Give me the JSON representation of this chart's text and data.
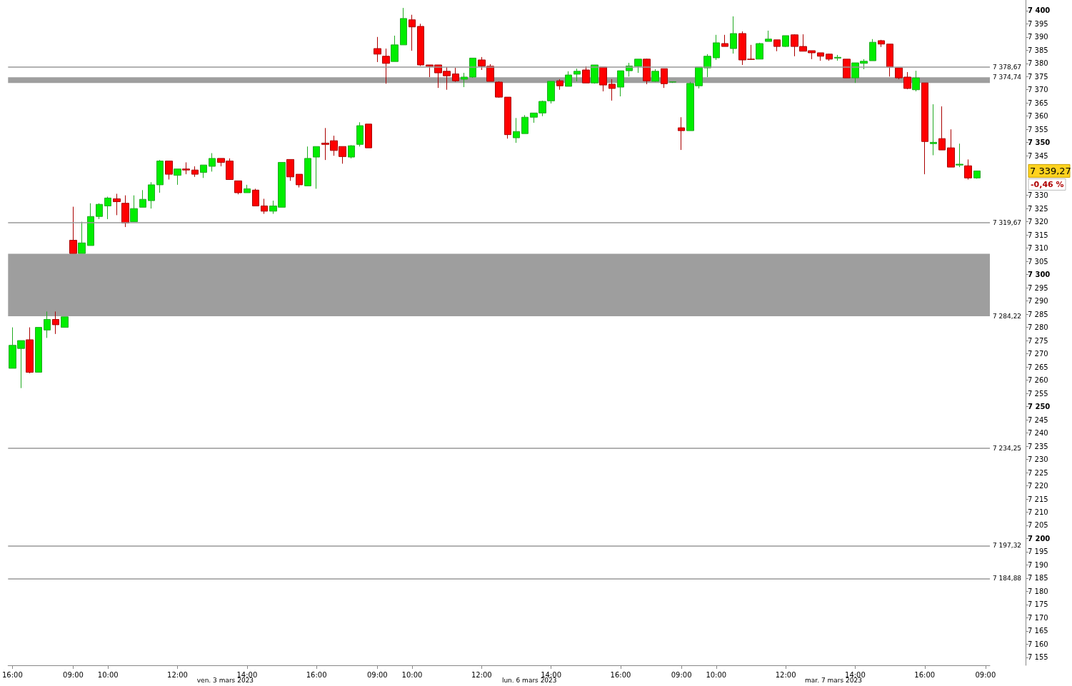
{
  "chart_data": {
    "type": "candlestick",
    "categories": [
      "16:00",
      null,
      null,
      null,
      null,
      null,
      null,
      "09:00",
      null,
      null,
      null,
      "10:00",
      null,
      null,
      null,
      null,
      null,
      null,
      null,
      "12:00",
      null,
      null,
      null,
      null,
      null,
      null,
      null,
      "14:00",
      null,
      null,
      null,
      null,
      null,
      null,
      null,
      "16:00",
      null,
      null,
      null,
      null,
      null,
      null,
      "09:00",
      null,
      null,
      null,
      "10:00",
      null,
      null,
      null,
      null,
      null,
      null,
      null,
      "12:00",
      null,
      null,
      null,
      null,
      null,
      null,
      null,
      "14:00",
      null,
      null,
      null,
      null,
      null,
      null,
      null,
      "16:00",
      null,
      null,
      null,
      null,
      null,
      null,
      "09:00",
      null,
      null,
      null,
      "10:00",
      null,
      null,
      null,
      null,
      null,
      null,
      null,
      "12:00",
      null,
      null,
      null,
      null,
      null,
      null,
      null,
      "14:00",
      null,
      null,
      null,
      null,
      null,
      null,
      null,
      "16:00",
      null,
      null,
      null,
      null,
      null,
      null,
      "09:00"
    ],
    "ohlc": [
      [
        7264.5,
        7280,
        7264.5,
        7273.2
      ],
      [
        7272,
        7275,
        7257,
        7275
      ],
      [
        7275.3,
        7280,
        7262.6,
        7263
      ],
      [
        7263,
        7280,
        7263,
        7280
      ],
      [
        7279,
        7286,
        7276,
        7283
      ],
      [
        7283,
        7286,
        7277.5,
        7281
      ],
      [
        7280,
        7284,
        7280,
        7284
      ],
      [
        7313,
        7325.7,
        7308,
        7308
      ],
      [
        7308,
        7320,
        7308,
        7312
      ],
      [
        7311,
        7327,
        7311,
        7322
      ],
      [
        7322,
        7327,
        7321,
        7326.6
      ],
      [
        7326,
        7329.5,
        7321,
        7329
      ],
      [
        7328.7,
        7330.6,
        7322.5,
        7327.6
      ],
      [
        7327,
        7330,
        7318,
        7319.5
      ],
      [
        7320,
        7330,
        7320,
        7325
      ],
      [
        7325.5,
        7332,
        7325.5,
        7328.5
      ],
      [
        7328,
        7335,
        7325,
        7334
      ],
      [
        7334,
        7343.4,
        7331,
        7343
      ],
      [
        7343,
        7343,
        7336,
        7338
      ],
      [
        7337.6,
        7340,
        7334,
        7340
      ],
      [
        7340,
        7342.5,
        7338,
        7339.6
      ],
      [
        7339.6,
        7341,
        7337,
        7338
      ],
      [
        7338.7,
        7341.5,
        7336.6,
        7341.5
      ],
      [
        7341,
        7346,
        7339,
        7344
      ],
      [
        7344,
        7344,
        7341,
        7342.5
      ],
      [
        7343,
        7344,
        7336,
        7336
      ],
      [
        7335.5,
        7335.5,
        7330.4,
        7331
      ],
      [
        7331,
        7334,
        7331,
        7332.5
      ],
      [
        7332,
        7332.5,
        7326,
        7326
      ],
      [
        7326,
        7328.7,
        7323,
        7324
      ],
      [
        7324,
        7328,
        7323,
        7326
      ],
      [
        7325.5,
        7342.5,
        7325.5,
        7342.5
      ],
      [
        7343.6,
        7343.6,
        7335.5,
        7337
      ],
      [
        7338,
        7338,
        7333,
        7334
      ],
      [
        7333.6,
        7348.5,
        7333.6,
        7344
      ],
      [
        7344.5,
        7348.5,
        7332.5,
        7348.5
      ],
      [
        7349.8,
        7355.5,
        7343.4,
        7349.3
      ],
      [
        7350.7,
        7352.6,
        7345,
        7347
      ],
      [
        7348.5,
        7348.5,
        7342,
        7344.7
      ],
      [
        7344.5,
        7349,
        7344,
        7348.8
      ],
      [
        7349.3,
        7357.7,
        7348.5,
        7356.4
      ],
      [
        7357,
        7357,
        7348,
        7348
      ],
      [
        7385.6,
        7390,
        7380.5,
        7383.5
      ],
      [
        7382.7,
        7385.6,
        7372.3,
        7380
      ],
      [
        7380.7,
        7390.5,
        7380.7,
        7387
      ],
      [
        7387,
        7401,
        7387,
        7397
      ],
      [
        7396.5,
        7398.4,
        7384.8,
        7393.8
      ],
      [
        7394,
        7395,
        7379,
        7379.4
      ],
      [
        7379.4,
        7379.4,
        7374.8,
        7378.9
      ],
      [
        7379.4,
        7379.4,
        7370.7,
        7376.4
      ],
      [
        7377,
        7378.6,
        7370,
        7375.3
      ],
      [
        7376,
        7378.3,
        7373,
        7373.4
      ],
      [
        7374,
        7376.4,
        7371,
        7374.8
      ],
      [
        7374.8,
        7382,
        7374.5,
        7382
      ],
      [
        7381.3,
        7382.4,
        7377.5,
        7379
      ],
      [
        7378.9,
        7379.7,
        7373.2,
        7373.2
      ],
      [
        7372.9,
        7373.2,
        7367,
        7367.2
      ],
      [
        7367.2,
        7367.2,
        7351.5,
        7353
      ],
      [
        7351.8,
        7359.3,
        7349.9,
        7354.2
      ],
      [
        7353.4,
        7360.4,
        7353.4,
        7359.6
      ],
      [
        7359.6,
        7361.2,
        7357.5,
        7361.2
      ],
      [
        7361.2,
        7365.9,
        7360,
        7365.6
      ],
      [
        7365.8,
        7373.2,
        7364.8,
        7373.2
      ],
      [
        7373.4,
        7374,
        7370,
        7371.5
      ],
      [
        7371.3,
        7377,
        7371.3,
        7375.6
      ],
      [
        7375.9,
        7378,
        7373.2,
        7377
      ],
      [
        7377.5,
        7378.9,
        7372.6,
        7372.6
      ],
      [
        7372.6,
        7379.4,
        7372.3,
        7379.4
      ],
      [
        7378.6,
        7378.6,
        7369.4,
        7371.8
      ],
      [
        7372.1,
        7374,
        7365.9,
        7370.5
      ],
      [
        7371,
        7377.2,
        7367.5,
        7377.2
      ],
      [
        7377.2,
        7380.2,
        7375,
        7379
      ],
      [
        7378.9,
        7381.6,
        7376.4,
        7381.6
      ],
      [
        7381.6,
        7381.8,
        7372.1,
        7373.4
      ],
      [
        7373.2,
        7377.8,
        7373,
        7377
      ],
      [
        7378,
        7378,
        7370.7,
        7372.3
      ],
      [
        7372.9,
        7373,
        7372.6,
        7373
      ],
      [
        7355.6,
        7359.6,
        7347.2,
        7354.5
      ],
      [
        7354.5,
        7373,
        7354.5,
        7372.4
      ],
      [
        7371.5,
        7378.6,
        7370.5,
        7378.6
      ],
      [
        7378.3,
        7383.5,
        7374.8,
        7382.7
      ],
      [
        7382.1,
        7390.8,
        7381.3,
        7387.8
      ],
      [
        7387.5,
        7390.8,
        7386.4,
        7386.4
      ],
      [
        7385.6,
        7397.8,
        7383.7,
        7391.3
      ],
      [
        7391.3,
        7392.1,
        7379.4,
        7381.3
      ],
      [
        7381.6,
        7387,
        7381.3,
        7381.5
      ],
      [
        7381.6,
        7387.8,
        7381.6,
        7387.5
      ],
      [
        7388.3,
        7392.4,
        7388.3,
        7389.2
      ],
      [
        7388.9,
        7388.9,
        7384.6,
        7386.4
      ],
      [
        7386.4,
        7390.5,
        7386.2,
        7390.5
      ],
      [
        7390.8,
        7391,
        7382.7,
        7386.4
      ],
      [
        7386.4,
        7391,
        7384.6,
        7384.6
      ],
      [
        7384.8,
        7384.8,
        7381.6,
        7384
      ],
      [
        7384,
        7384,
        7381,
        7382.7
      ],
      [
        7383.5,
        7383.7,
        7381,
        7381.6
      ],
      [
        7382,
        7383.2,
        7381,
        7382.3
      ],
      [
        7381.6,
        7381.6,
        7374.5,
        7374.5
      ],
      [
        7374.5,
        7380.2,
        7372.6,
        7380.2
      ],
      [
        7380,
        7381.6,
        7377.8,
        7380.8
      ],
      [
        7381,
        7389.2,
        7381,
        7388
      ],
      [
        7388.6,
        7388.9,
        7386.2,
        7387.3
      ],
      [
        7387.3,
        7387.3,
        7375,
        7378.6
      ],
      [
        7378.3,
        7378.3,
        7374,
        7374.5
      ],
      [
        7374.8,
        7376.7,
        7370.2,
        7370.5
      ],
      [
        7370,
        7377.2,
        7369.4,
        7374.5
      ],
      [
        7372.6,
        7372.6,
        7338,
        7350.4
      ],
      [
        7349.6,
        7364.5,
        7345.2,
        7350.1
      ],
      [
        7351.5,
        7363.7,
        7347.2,
        7347.2
      ],
      [
        7348,
        7355,
        7340.7,
        7340.7
      ],
      [
        7341.5,
        7349.6,
        7340.7,
        7341.8
      ],
      [
        7341.2,
        7343.6,
        7336,
        7336.6
      ],
      [
        7336.6,
        7339.27,
        7336.3,
        7339.27
      ],
      null
    ],
    "ylim": [
      7152,
      7404
    ],
    "yticks": [
      {
        "value": 7155,
        "label": "7 155"
      },
      {
        "value": 7160,
        "label": "7 160"
      },
      {
        "value": 7165,
        "label": "7 165"
      },
      {
        "value": 7170,
        "label": "7 170"
      },
      {
        "value": 7175,
        "label": "7 175"
      },
      {
        "value": 7180,
        "label": "7 180"
      },
      {
        "value": 7185,
        "label": "7 185"
      },
      {
        "value": 7190,
        "label": "7 190"
      },
      {
        "value": 7195,
        "label": "7 195"
      },
      {
        "value": 7200,
        "label": "7 200"
      },
      {
        "value": 7205,
        "label": "7 205"
      },
      {
        "value": 7210,
        "label": "7 210"
      },
      {
        "value": 7215,
        "label": "7 215"
      },
      {
        "value": 7220,
        "label": "7 220"
      },
      {
        "value": 7225,
        "label": "7 225"
      },
      {
        "value": 7230,
        "label": "7 230"
      },
      {
        "value": 7235,
        "label": "7 235"
      },
      {
        "value": 7240,
        "label": "7 240"
      },
      {
        "value": 7245,
        "label": "7 245"
      },
      {
        "value": 7250,
        "label": "7 250"
      },
      {
        "value": 7255,
        "label": "7 255"
      },
      {
        "value": 7260,
        "label": "7 260"
      },
      {
        "value": 7265,
        "label": "7 265"
      },
      {
        "value": 7270,
        "label": "7 270"
      },
      {
        "value": 7275,
        "label": "7 275"
      },
      {
        "value": 7280,
        "label": "7 280"
      },
      {
        "value": 7285,
        "label": "7 285"
      },
      {
        "value": 7290,
        "label": "7 290"
      },
      {
        "value": 7295,
        "label": "7 295"
      },
      {
        "value": 7300,
        "label": "7 300"
      },
      {
        "value": 7305,
        "label": "7 305"
      },
      {
        "value": 7310,
        "label": "7 310"
      },
      {
        "value": 7315,
        "label": "7 315"
      },
      {
        "value": 7320,
        "label": "7 320"
      },
      {
        "value": 7325,
        "label": "7 325"
      },
      {
        "value": 7330,
        "label": "7 330"
      },
      {
        "value": 7345,
        "label": "7 345"
      },
      {
        "value": 7350,
        "label": "7 350"
      },
      {
        "value": 7355,
        "label": "7 355"
      },
      {
        "value": 7360,
        "label": "7 360"
      },
      {
        "value": 7365,
        "label": "7 365"
      },
      {
        "value": 7370,
        "label": "7 370"
      },
      {
        "value": 7375,
        "label": "7 375"
      },
      {
        "value": 7380,
        "label": "7 380"
      },
      {
        "value": 7385,
        "label": "7 385"
      },
      {
        "value": 7390,
        "label": "7 390"
      },
      {
        "value": 7395,
        "label": "7 395"
      },
      {
        "value": 7400,
        "label": "7 400"
      }
    ],
    "ref_lines": [
      {
        "axis": "y",
        "value": 7378.67,
        "label": "7 378,67",
        "color": "#999999"
      },
      {
        "axis": "y",
        "value": 7319.67,
        "label": "7 319,67",
        "color": "#999999"
      },
      {
        "axis": "y",
        "value": 7234.25,
        "label": "7 234,25",
        "color": "#999999"
      },
      {
        "axis": "y",
        "value": 7197.32,
        "label": "7 197,32",
        "color": "#999999"
      },
      {
        "axis": "y",
        "value": 7184.88,
        "label": "7 184,88",
        "color": "#999999"
      }
    ],
    "bands": [
      {
        "axis": "y",
        "from": 7284.22,
        "to": 7307.9,
        "label": "7 284,22",
        "color": "#999999"
      },
      {
        "axis": "y",
        "from": 7374.74,
        "to": 7372.6,
        "label": "7 374,74",
        "color": "#999999"
      }
    ],
    "annotations": [
      "ven. 3 mars 2023",
      "lun. 6 mars 2023",
      "mar. 7 mars 2023",
      "7 339,27",
      "-0,46 %"
    ],
    "grid": false
  }
}
